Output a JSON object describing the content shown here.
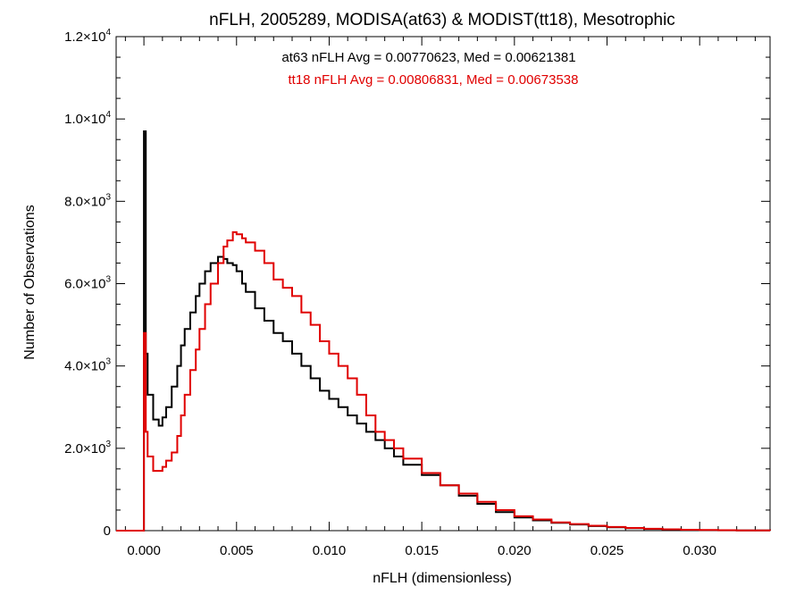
{
  "chart_data": {
    "type": "line",
    "style": "step-histogram",
    "title": "nFLH, 2005289, MODISA(at63) & MODIST(tt18), Mesotrophic",
    "xlabel": "nFLH (dimensionless)",
    "ylabel": "Number of Observations",
    "xlim": [
      -0.0015,
      0.0338
    ],
    "ylim": [
      0,
      12000
    ],
    "x_ticks": [
      {
        "value": 0.0,
        "label": "0.000"
      },
      {
        "value": 0.005,
        "label": "0.005"
      },
      {
        "value": 0.01,
        "label": "0.010"
      },
      {
        "value": 0.015,
        "label": "0.015"
      },
      {
        "value": 0.02,
        "label": "0.020"
      },
      {
        "value": 0.025,
        "label": "0.025"
      },
      {
        "value": 0.03,
        "label": "0.030"
      }
    ],
    "y_ticks": [
      {
        "value": 0,
        "mantissa": "0",
        "exp": ""
      },
      {
        "value": 2000,
        "mantissa": "2.0×10",
        "exp": "3"
      },
      {
        "value": 4000,
        "mantissa": "4.0×10",
        "exp": "3"
      },
      {
        "value": 6000,
        "mantissa": "6.0×10",
        "exp": "3"
      },
      {
        "value": 8000,
        "mantissa": "8.0×10",
        "exp": "3"
      },
      {
        "value": 10000,
        "mantissa": "1.0×10",
        "exp": "4"
      },
      {
        "value": 12000,
        "mantissa": "1.2×10",
        "exp": "4"
      }
    ],
    "annotations": [
      {
        "text": "at63 nFLH Avg = 0.00770623, Med = 0.00621381",
        "color": "#000000"
      },
      {
        "text": "tt18 nFLH Avg = 0.00806831, Med = 0.00673538",
        "color": "#e00000"
      }
    ],
    "grid": false,
    "series": [
      {
        "color": "#000000",
        "x": [
          -0.0015,
          -0.0001,
          0.0,
          0.0001,
          0.0002,
          0.0005,
          0.0008,
          0.001,
          0.0012,
          0.0015,
          0.0018,
          0.002,
          0.0022,
          0.0025,
          0.0028,
          0.003,
          0.0033,
          0.0036,
          0.004,
          0.0043,
          0.0045,
          0.0048,
          0.005,
          0.0053,
          0.0055,
          0.006,
          0.0065,
          0.007,
          0.0075,
          0.008,
          0.0085,
          0.009,
          0.0095,
          0.01,
          0.0105,
          0.011,
          0.0115,
          0.012,
          0.0125,
          0.013,
          0.0135,
          0.014,
          0.015,
          0.016,
          0.017,
          0.018,
          0.019,
          0.02,
          0.021,
          0.022,
          0.023,
          0.024,
          0.025,
          0.026,
          0.027,
          0.028,
          0.029,
          0.03,
          0.031,
          0.032,
          0.0338
        ],
        "values": [
          0,
          0,
          9700,
          4300,
          3300,
          2700,
          2550,
          2750,
          3000,
          3500,
          4000,
          4500,
          4900,
          5300,
          5700,
          6000,
          6300,
          6500,
          6650,
          6600,
          6500,
          6450,
          6300,
          6000,
          5800,
          5400,
          5100,
          4800,
          4600,
          4300,
          4000,
          3700,
          3400,
          3200,
          3000,
          2800,
          2600,
          2400,
          2200,
          2000,
          1800,
          1600,
          1350,
          1100,
          850,
          650,
          450,
          320,
          250,
          190,
          150,
          110,
          80,
          60,
          40,
          30,
          20,
          12,
          8,
          5,
          2
        ]
      },
      {
        "color": "#e00000",
        "x": [
          -0.0015,
          -0.0001,
          0.0,
          0.0001,
          0.0002,
          0.0005,
          0.0008,
          0.001,
          0.0012,
          0.0015,
          0.0018,
          0.002,
          0.0022,
          0.0025,
          0.0028,
          0.003,
          0.0033,
          0.0036,
          0.004,
          0.0043,
          0.0045,
          0.0048,
          0.005,
          0.0053,
          0.0055,
          0.006,
          0.0065,
          0.007,
          0.0075,
          0.008,
          0.0085,
          0.009,
          0.0095,
          0.01,
          0.0105,
          0.011,
          0.0115,
          0.012,
          0.0125,
          0.013,
          0.0135,
          0.014,
          0.015,
          0.016,
          0.017,
          0.018,
          0.019,
          0.02,
          0.021,
          0.022,
          0.023,
          0.024,
          0.025,
          0.026,
          0.027,
          0.028,
          0.029,
          0.03,
          0.031,
          0.032,
          0.0338
        ],
        "values": [
          0,
          0,
          4800,
          2400,
          1800,
          1450,
          1450,
          1550,
          1700,
          1900,
          2300,
          2800,
          3300,
          3900,
          4400,
          4900,
          5500,
          6000,
          6500,
          6900,
          7050,
          7250,
          7200,
          7100,
          7000,
          6800,
          6500,
          6100,
          5900,
          5700,
          5300,
          5000,
          4600,
          4300,
          4000,
          3700,
          3300,
          2800,
          2400,
          2200,
          2000,
          1750,
          1400,
          1100,
          900,
          700,
          500,
          350,
          270,
          200,
          160,
          120,
          90,
          65,
          45,
          33,
          23,
          15,
          10,
          6,
          3
        ]
      }
    ]
  }
}
